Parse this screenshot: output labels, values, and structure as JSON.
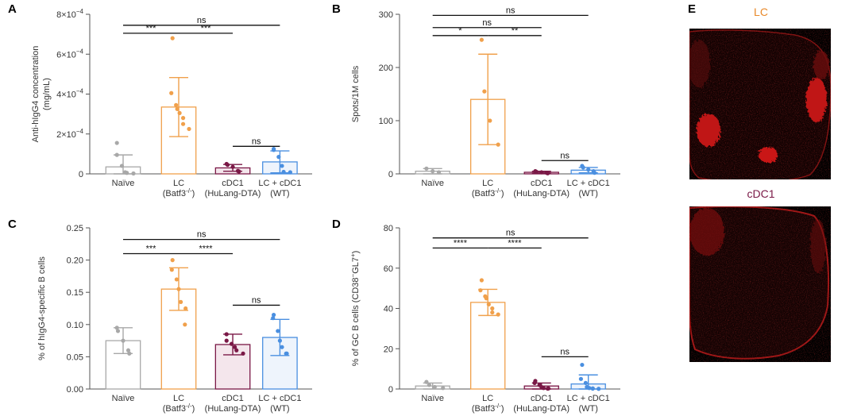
{
  "panel_e": {
    "letter": "E",
    "images": [
      {
        "title": "LC",
        "title_color": "#e8892a"
      },
      {
        "title": "cDC1",
        "title_color": "#7a1846"
      }
    ]
  },
  "colors": {
    "naive": "#a8a8a8",
    "lc": "#f0a04b",
    "cdc1": "#7a1846",
    "lccdc1": "#4a8fe0"
  },
  "chart_data": [
    {
      "letter": "A",
      "type": "bar",
      "ylabel_lines": [
        "Anti-hIgG4 concentration",
        "(mg/mL)"
      ],
      "ylim": [
        0,
        0.0008
      ],
      "yticks": [
        {
          "v": 0,
          "label": "0"
        },
        {
          "v": 0.0002,
          "base": "2×10",
          "exp": "−4"
        },
        {
          "v": 0.0004,
          "base": "4×10",
          "exp": "−4"
        },
        {
          "v": 0.0006,
          "base": "6×10",
          "exp": "−4"
        },
        {
          "v": 0.0008,
          "base": "8×10",
          "exp": "−4"
        }
      ],
      "categories": [
        {
          "line1": "Naïve",
          "line2": ""
        },
        {
          "line1": "LC",
          "line2": "(Batf3",
          "sup": "-/-",
          "suffix": ")"
        },
        {
          "line1": "cDC1",
          "line2": "(HuLang-DTA)"
        },
        {
          "line1": "LC + cDC1",
          "line2": "(WT)"
        }
      ],
      "series": [
        {
          "key": "naive",
          "mean": 3.5e-05,
          "sd": 6e-05,
          "points": [
            0.000155,
            9.5e-05,
            4e-05,
            8e-06,
            5e-06,
            2e-06
          ]
        },
        {
          "key": "lc",
          "mean": 0.000335,
          "sd": 0.000148,
          "points": [
            0.00068,
            0.000405,
            0.000345,
            0.000325,
            0.000305,
            0.00028,
            0.00025,
            0.000225
          ]
        },
        {
          "key": "cdc1",
          "mean": 3e-05,
          "sd": 1.7e-05,
          "points": [
            5e-05,
            4.5e-05,
            3.5e-05,
            1.5e-05,
            1.2e-05
          ]
        },
        {
          "key": "lccdc1",
          "mean": 6e-05,
          "sd": 5.5e-05,
          "points": [
            0.000125,
            0.00012,
            8.5e-05,
            4e-05,
            1e-05,
            8e-06
          ]
        }
      ],
      "brackets": [
        {
          "from": 0,
          "to": 3,
          "level": 0.000745,
          "label": "ns"
        },
        {
          "from": 0,
          "to": 1,
          "level": 0.000705,
          "label": "***"
        },
        {
          "from": 1,
          "to": 2,
          "level": 0.000705,
          "label": "***"
        },
        {
          "from": 2,
          "to": 3,
          "level": 0.000138,
          "label": "ns"
        }
      ]
    },
    {
      "letter": "B",
      "type": "bar",
      "ylabel_lines": [
        "Spots/1M cells"
      ],
      "ylim": [
        0,
        300
      ],
      "yticks": [
        {
          "v": 0,
          "label": "0"
        },
        {
          "v": 100,
          "label": "100"
        },
        {
          "v": 200,
          "label": "200"
        },
        {
          "v": 300,
          "label": "300"
        }
      ],
      "categories": [
        {
          "line1": "Naïve",
          "line2": ""
        },
        {
          "line1": "LC",
          "line2": "(Batf3",
          "sup": "-/-",
          "suffix": ")"
        },
        {
          "line1": "cDC1",
          "line2": "(HuLang-DTA)"
        },
        {
          "line1": "LC + cDC1",
          "line2": "(WT)"
        }
      ],
      "series": [
        {
          "key": "naive",
          "mean": 5,
          "sd": 5,
          "points": [
            10,
            5,
            3
          ]
        },
        {
          "key": "lc",
          "mean": 140,
          "sd": 85,
          "points": [
            252,
            155,
            100,
            55
          ]
        },
        {
          "key": "cdc1",
          "mean": 3,
          "sd": 2,
          "points": [
            5,
            4,
            3,
            2,
            1
          ]
        },
        {
          "key": "lccdc1",
          "mean": 7,
          "sd": 5,
          "points": [
            15,
            12,
            8,
            5,
            2
          ]
        }
      ],
      "brackets": [
        {
          "from": 0,
          "to": 3,
          "level": 298,
          "label": "ns"
        },
        {
          "from": 0,
          "to": 2,
          "level": 275,
          "label": "ns"
        },
        {
          "from": 0,
          "to": 1,
          "level": 260,
          "label": "*"
        },
        {
          "from": 1,
          "to": 2,
          "level": 260,
          "label": "**"
        },
        {
          "from": 2,
          "to": 3,
          "level": 25,
          "label": "ns"
        }
      ]
    },
    {
      "letter": "C",
      "type": "bar",
      "ylabel_lines": [
        "% of hIgG4-specific B cells"
      ],
      "ylim": [
        0,
        0.25
      ],
      "yticks": [
        {
          "v": 0,
          "label": "0.00"
        },
        {
          "v": 0.05,
          "label": "0.05"
        },
        {
          "v": 0.1,
          "label": "0.10"
        },
        {
          "v": 0.15,
          "label": "0.15"
        },
        {
          "v": 0.2,
          "label": "0.20"
        },
        {
          "v": 0.25,
          "label": "0.25"
        }
      ],
      "categories": [
        {
          "line1": "Naïve",
          "line2": ""
        },
        {
          "line1": "LC",
          "line2": "(Batf3",
          "sup": "-/-",
          "suffix": ")"
        },
        {
          "line1": "cDC1",
          "line2": "(HuLang-DTA)"
        },
        {
          "line1": "LC + cDC1",
          "line2": "(WT)"
        }
      ],
      "series": [
        {
          "key": "naive",
          "mean": 0.075,
          "sd": 0.02,
          "points": [
            0.095,
            0.09,
            0.075,
            0.06,
            0.055
          ]
        },
        {
          "key": "lc",
          "mean": 0.155,
          "sd": 0.033,
          "points": [
            0.2,
            0.185,
            0.17,
            0.155,
            0.135,
            0.125,
            0.1
          ]
        },
        {
          "key": "cdc1",
          "mean": 0.069,
          "sd": 0.016,
          "points": [
            0.085,
            0.075,
            0.07,
            0.065,
            0.06,
            0.055
          ]
        },
        {
          "key": "lccdc1",
          "mean": 0.08,
          "sd": 0.028,
          "points": [
            0.115,
            0.11,
            0.09,
            0.075,
            0.065,
            0.055,
            0.055
          ]
        }
      ],
      "brackets": [
        {
          "from": 0,
          "to": 3,
          "level": 0.232,
          "label": "ns"
        },
        {
          "from": 0,
          "to": 1,
          "level": 0.21,
          "label": "***"
        },
        {
          "from": 1,
          "to": 2,
          "level": 0.21,
          "label": "****"
        },
        {
          "from": 2,
          "to": 3,
          "level": 0.13,
          "label": "ns"
        }
      ]
    },
    {
      "letter": "D",
      "type": "bar",
      "ylabel_lines": [
        "% of GC B cells (CD38",
        "GL7",
        ")"
      ],
      "ylim": [
        0,
        80
      ],
      "yticks": [
        {
          "v": 0,
          "label": "0"
        },
        {
          "v": 20,
          "label": "20"
        },
        {
          "v": 40,
          "label": "40"
        },
        {
          "v": 60,
          "label": "60"
        },
        {
          "v": 80,
          "label": "80"
        }
      ],
      "categories": [
        {
          "line1": "Naïve",
          "line2": ""
        },
        {
          "line1": "LC",
          "line2": "(Batf3",
          "sup": "-/-",
          "suffix": ")"
        },
        {
          "line1": "cDC1",
          "line2": "(HuLang-DTA)"
        },
        {
          "line1": "LC + cDC1",
          "line2": "(WT)"
        }
      ],
      "series": [
        {
          "key": "naive",
          "mean": 1.5,
          "sd": 1.5,
          "points": [
            3.5,
            2,
            1,
            0.5
          ]
        },
        {
          "key": "lc",
          "mean": 43,
          "sd": 6.5,
          "points": [
            54,
            49,
            46,
            45,
            42,
            40,
            38,
            37
          ]
        },
        {
          "key": "cdc1",
          "mean": 1.5,
          "sd": 1.5,
          "points": [
            4,
            3,
            2,
            1,
            0.5,
            0.3,
            0.2
          ]
        },
        {
          "key": "lccdc1",
          "mean": 2.5,
          "sd": 4.5,
          "points": [
            12,
            5,
            3,
            1,
            0.5,
            0.3,
            0.2,
            0.1
          ]
        }
      ],
      "brackets": [
        {
          "from": 0,
          "to": 3,
          "level": 75,
          "label": "ns"
        },
        {
          "from": 0,
          "to": 1,
          "level": 70,
          "label": "****"
        },
        {
          "from": 1,
          "to": 2,
          "level": 70,
          "label": "****"
        },
        {
          "from": 2,
          "to": 3,
          "level": 16,
          "label": "ns"
        }
      ]
    }
  ]
}
